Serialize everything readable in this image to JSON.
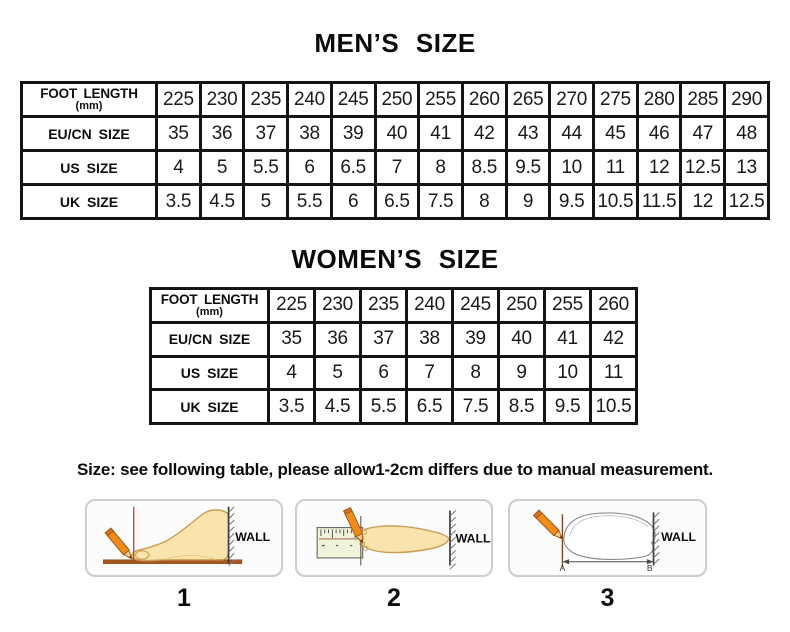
{
  "page": {
    "mens_title": "MEN’S SIZE",
    "womens_title": "WOMEN’S SIZE",
    "note": "Size: see following table, please allow1-2cm differs due to manual measurement."
  },
  "mens_table": {
    "rows": [
      {
        "label": "FOOT LENGTH",
        "sublabel": "(mm)",
        "values": [
          "225",
          "230",
          "235",
          "240",
          "245",
          "250",
          "255",
          "260",
          "265",
          "270",
          "275",
          "280",
          "285",
          "290"
        ]
      },
      {
        "label": "EU/CN SIZE",
        "values": [
          "35",
          "36",
          "37",
          "38",
          "39",
          "40",
          "41",
          "42",
          "43",
          "44",
          "45",
          "46",
          "47",
          "48"
        ]
      },
      {
        "label": "US SIZE",
        "values": [
          "4",
          "5",
          "5.5",
          "6",
          "6.5",
          "7",
          "8",
          "8.5",
          "9.5",
          "10",
          "11",
          "12",
          "12.5",
          "13"
        ]
      },
      {
        "label": "UK SIZE",
        "values": [
          "3.5",
          "4.5",
          "5",
          "5.5",
          "6",
          "6.5",
          "7.5",
          "8",
          "9",
          "9.5",
          "10.5",
          "11.5",
          "12",
          "12.5"
        ]
      }
    ]
  },
  "womens_table": {
    "rows": [
      {
        "label": "FOOT LENGTH",
        "sublabel": "(mm)",
        "values": [
          "225",
          "230",
          "235",
          "240",
          "245",
          "250",
          "255",
          "260"
        ]
      },
      {
        "label": "EU/CN SIZE",
        "values": [
          "35",
          "36",
          "37",
          "38",
          "39",
          "40",
          "41",
          "42"
        ]
      },
      {
        "label": "US SIZE",
        "values": [
          "4",
          "5",
          "6",
          "7",
          "8",
          "9",
          "10",
          "11"
        ]
      },
      {
        "label": "UK SIZE",
        "values": [
          "3.5",
          "4.5",
          "5.5",
          "6.5",
          "7.5",
          "8.5",
          "9.5",
          "10.5"
        ]
      }
    ]
  },
  "diagrams": {
    "wall_label": "WALL",
    "point_a": "A",
    "point_b": "B",
    "steps": [
      {
        "number": "1"
      },
      {
        "number": "2"
      },
      {
        "number": "3"
      }
    ]
  },
  "colors": {
    "table_border": "#141414",
    "pencil_orange": "#f08c1e",
    "foot_skin": "#f9e4ae",
    "board_brown": "#a8581c",
    "guide_red": "#d03a3a",
    "ruler_fill": "#eff3d8"
  }
}
